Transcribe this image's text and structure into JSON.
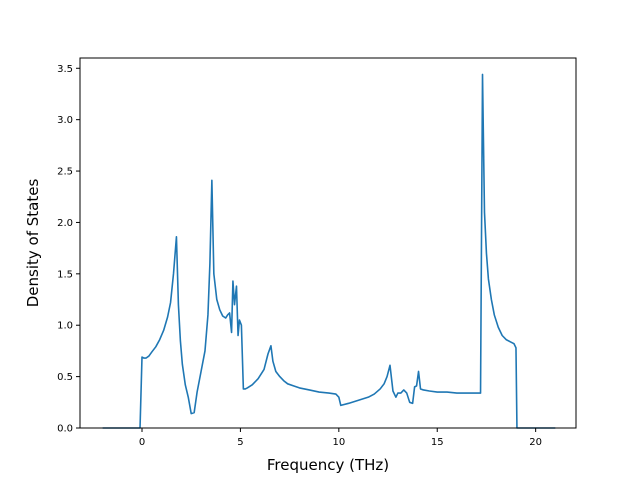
{
  "chart_data": {
    "type": "line",
    "xlabel": "Frequency (THz)",
    "ylabel": "Density of States",
    "xlim": [
      -3.15,
      22.05
    ],
    "ylim": [
      0.0,
      3.6
    ],
    "xticks": [
      0,
      5,
      10,
      15,
      20
    ],
    "yticks": [
      0.0,
      0.5,
      1.0,
      1.5,
      2.0,
      2.5,
      3.0,
      3.5
    ],
    "xtick_labels": [
      "0",
      "5",
      "10",
      "15",
      "20"
    ],
    "ytick_labels": [
      "0.0",
      "0.5",
      "1.0",
      "1.5",
      "2.0",
      "2.5",
      "3.0",
      "3.5"
    ],
    "grid": false,
    "line_color": "#1f77b4",
    "series": [
      {
        "x": [
          -2.0,
          -0.1,
          0.0,
          0.1,
          0.2,
          0.35,
          0.5,
          0.7,
          0.9,
          1.1,
          1.3,
          1.45,
          1.6,
          1.75,
          1.85,
          1.95,
          2.05,
          2.2,
          2.35,
          2.5,
          2.65,
          2.8,
          3.0,
          3.2,
          3.35,
          3.45,
          3.55,
          3.65,
          3.8,
          3.95,
          4.1,
          4.25,
          4.35,
          4.45,
          4.55,
          4.62,
          4.7,
          4.8,
          4.88,
          4.95,
          5.05,
          5.15,
          5.25,
          5.35,
          5.6,
          5.9,
          6.2,
          6.4,
          6.55,
          6.65,
          6.8,
          7.0,
          7.2,
          7.4,
          7.7,
          8.0,
          8.5,
          9.0,
          9.5,
          9.85,
          10.0,
          10.1,
          10.5,
          11.0,
          11.5,
          11.8,
          12.1,
          12.3,
          12.45,
          12.6,
          12.75,
          12.9,
          13.0,
          13.15,
          13.3,
          13.45,
          13.6,
          13.75,
          13.85,
          13.95,
          14.05,
          14.15,
          14.3,
          14.6,
          15.0,
          15.5,
          16.0,
          16.5,
          17.0,
          17.1,
          17.2,
          17.3,
          17.4,
          17.5,
          17.6,
          17.75,
          17.9,
          18.1,
          18.3,
          18.5,
          18.7,
          18.9,
          19.0,
          19.05,
          19.15,
          19.5,
          21.0
        ],
        "y": [
          0.0,
          0.0,
          0.69,
          0.68,
          0.68,
          0.7,
          0.74,
          0.79,
          0.86,
          0.95,
          1.08,
          1.22,
          1.5,
          1.86,
          1.2,
          0.85,
          0.62,
          0.42,
          0.3,
          0.14,
          0.15,
          0.35,
          0.55,
          0.75,
          1.1,
          1.6,
          2.41,
          1.5,
          1.25,
          1.15,
          1.09,
          1.07,
          1.1,
          1.12,
          0.93,
          1.43,
          1.2,
          1.38,
          0.9,
          1.05,
          1.0,
          0.38,
          0.38,
          0.39,
          0.42,
          0.48,
          0.57,
          0.72,
          0.8,
          0.65,
          0.55,
          0.5,
          0.46,
          0.43,
          0.41,
          0.39,
          0.37,
          0.35,
          0.34,
          0.33,
          0.3,
          0.22,
          0.24,
          0.27,
          0.3,
          0.33,
          0.38,
          0.43,
          0.5,
          0.61,
          0.36,
          0.3,
          0.34,
          0.34,
          0.37,
          0.34,
          0.25,
          0.24,
          0.4,
          0.41,
          0.55,
          0.38,
          0.37,
          0.36,
          0.35,
          0.35,
          0.34,
          0.34,
          0.34,
          0.34,
          0.34,
          3.44,
          2.1,
          1.7,
          1.45,
          1.25,
          1.1,
          0.98,
          0.9,
          0.86,
          0.84,
          0.82,
          0.78,
          0.0,
          0.0,
          0.0,
          0.0
        ]
      }
    ]
  }
}
